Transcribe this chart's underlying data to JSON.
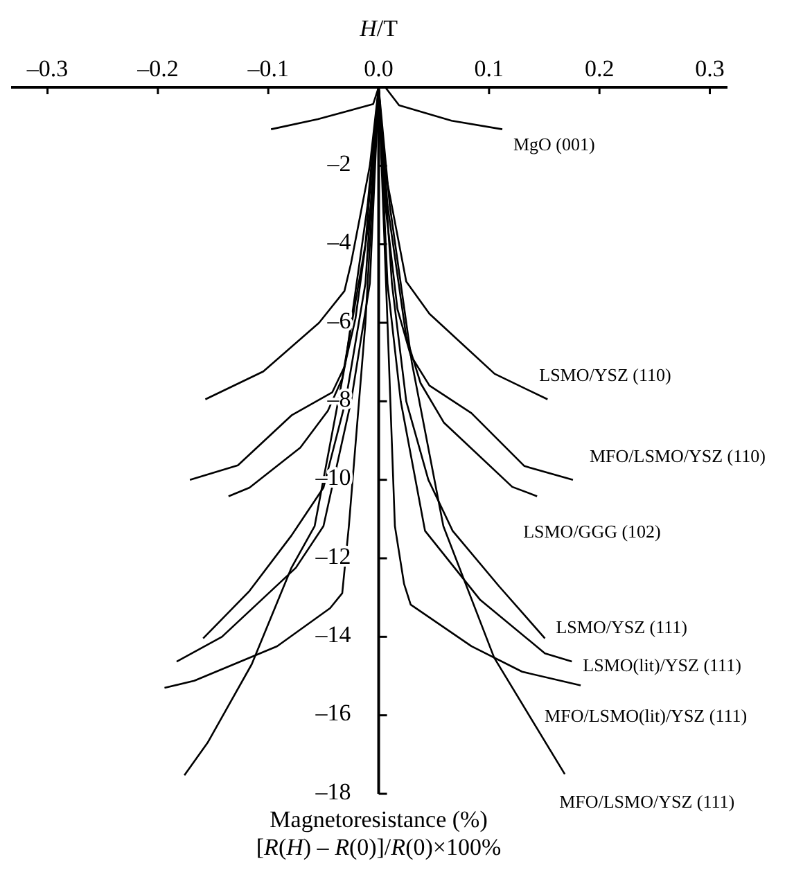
{
  "chart_data": {
    "type": "line",
    "xlabel": "H/T",
    "ylabel": "Magnetoresistance (%)\n[R(H) – R(0)]/R(0)×100%",
    "xlim": [
      -0.333,
      0.316
    ],
    "ylim": [
      -18,
      0
    ],
    "xticks": [
      {
        "value": -0.3,
        "label": "–0.3"
      },
      {
        "value": -0.2,
        "label": "–0.2"
      },
      {
        "value": -0.1,
        "label": "–0.1"
      },
      {
        "value": 0,
        "label": "0.0"
      },
      0.1,
      0.2,
      0.3
    ],
    "yticks": [
      {
        "value": -2,
        "label": "–2"
      },
      {
        "value": -4,
        "label": "–4"
      },
      {
        "value": -6,
        "label": "–6"
      },
      {
        "value": -8,
        "label": "–8"
      },
      {
        "value": -10,
        "label": "–10"
      },
      {
        "value": -12,
        "label": "–12"
      },
      {
        "value": -14,
        "label": "–14"
      },
      {
        "value": -16,
        "label": "–16"
      },
      {
        "value": -18,
        "label": "–18"
      }
    ],
    "grid": false,
    "legend": false,
    "marker": "none",
    "line_style": "solid",
    "series": [
      {
        "name": "MgO (001)",
        "color": "#000000",
        "x": [
          -0.0975,
          -0.055,
          -0.005,
          0,
          0.006,
          0.0185,
          0.066,
          0.112
        ],
        "values": [
          -1.07,
          -0.81,
          -0.43,
          0,
          0,
          -0.46,
          -0.85,
          -1.07
        ]
      },
      {
        "name": "LSMO/YSZ (110)",
        "color": "#000000",
        "x": [
          -0.157,
          -0.1045,
          -0.054,
          -0.031,
          -0.025,
          -0.008,
          0,
          0.005,
          0.025,
          0.046,
          0.105,
          0.153
        ],
        "values": [
          -7.95,
          -7.24,
          -6.0,
          -5.19,
          -4.48,
          -2,
          0,
          -2,
          -4.95,
          -5.77,
          -7.3,
          -7.95
        ]
      },
      {
        "name": "MFO/LSMO/YSZ (110)",
        "color": "#000000",
        "x": [
          -0.171,
          -0.1275,
          -0.079,
          -0.042,
          -0.031,
          -0.021,
          -0.007,
          0,
          0.006,
          0.017,
          0.029,
          0.046,
          0.084,
          0.132,
          0.176
        ],
        "values": [
          -10.0,
          -9.63,
          -8.36,
          -7.77,
          -7.12,
          -5.89,
          -3,
          0,
          -3,
          -5.65,
          -6.83,
          -7.6,
          -8.3,
          -9.65,
          -10.0
        ]
      },
      {
        "name": "LSMO/GGG (102)",
        "color": "#000000",
        "x": [
          -0.136,
          -0.117,
          -0.071,
          -0.046,
          -0.033,
          -0.012,
          0,
          0.008,
          0.025,
          0.038,
          0.059,
          0.121,
          0.1435
        ],
        "values": [
          -10.42,
          -10.2,
          -9.18,
          -8.24,
          -7.42,
          -4,
          0,
          -3,
          -6.36,
          -7.54,
          -8.54,
          -10.18,
          -10.42
        ]
      },
      {
        "name": "LSMO/YSZ (111)",
        "color": "#000000",
        "x": [
          -0.159,
          -0.117,
          -0.079,
          -0.05,
          -0.03,
          -0.012,
          0,
          0.012,
          0.025,
          0.045,
          0.067,
          0.109,
          0.1506
        ],
        "values": [
          -14.04,
          -12.83,
          -11.42,
          -10.2,
          -8,
          -5,
          0,
          -5,
          -8,
          -10,
          -11.3,
          -12.71,
          -14.04
        ]
      },
      {
        "name": "LSMO(lit)/YSZ (111)",
        "color": "#000000",
        "x": [
          -0.183,
          -0.142,
          -0.075,
          -0.05,
          -0.025,
          -0.008,
          0,
          0.008,
          0.02,
          0.042,
          0.092,
          0.1506,
          0.175
        ],
        "values": [
          -14.63,
          -14.0,
          -12.24,
          -11.18,
          -8,
          -5,
          0,
          -5,
          -8,
          -11.3,
          -13.06,
          -14.42,
          -14.63
        ]
      },
      {
        "name": "MFO/LSMO(lit)/YSZ (111)",
        "color": "#000000",
        "x": [
          -0.194,
          -0.167,
          -0.092,
          -0.044,
          -0.033,
          -0.027,
          -0.012,
          0,
          0.008,
          0.0147,
          0.023,
          0.029,
          0.084,
          0.13,
          0.183
        ],
        "values": [
          -15.3,
          -15.12,
          -14.24,
          -13.27,
          -12.89,
          -11.18,
          -6,
          0,
          -6,
          -11.18,
          -12.65,
          -13.18,
          -14.24,
          -14.89,
          -15.24
        ]
      },
      {
        "name": "MFO/LSMO/YSZ (111)",
        "color": "#000000",
        "x": [
          -0.176,
          -0.155,
          -0.115,
          -0.079,
          -0.058,
          -0.03,
          -0.01,
          0,
          0.01,
          0.03,
          0.0586,
          0.1046,
          0.1686
        ],
        "values": [
          -17.53,
          -16.7,
          -14.7,
          -12.24,
          -11.18,
          -7,
          -3,
          0,
          -3,
          -7,
          -11.18,
          -14.53,
          -17.5
        ]
      }
    ]
  }
}
